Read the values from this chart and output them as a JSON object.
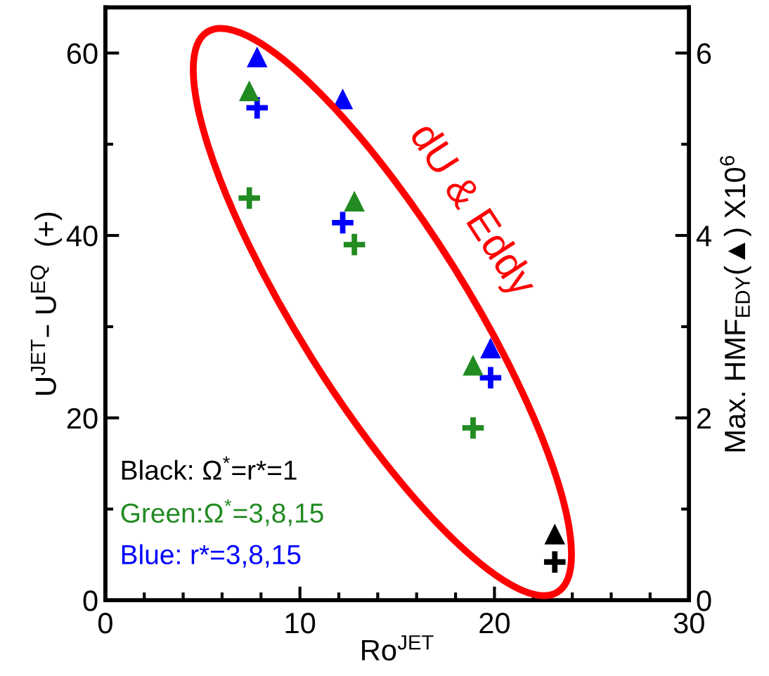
{
  "chart_data": {
    "type": "scatter",
    "xlabel": "Ro$^{JET}$",
    "ylabel": "U$^{JET}$– U$^{EQ}$  (+)",
    "y2label": "Max. HMF$_{EDY}$(▲) X10$^{6}$",
    "xlim": [
      0,
      30
    ],
    "xticks": [
      0,
      10,
      20,
      30
    ],
    "ylim": [
      0,
      65
    ],
    "yticks": [
      0,
      20,
      40,
      60
    ],
    "y2lim": [
      0,
      6.5
    ],
    "y2ticks": [
      0,
      2,
      4,
      6
    ],
    "series": [
      {
        "color": "#000000",
        "marker": "cross",
        "x": [
          23.1
        ],
        "values": [
          4.2
        ]
      },
      {
        "color": "#000000",
        "marker": "triangle",
        "axis": "y2",
        "x": [
          23.1
        ],
        "values": [
          0.72
        ]
      },
      {
        "color": "#228b22",
        "marker": "cross",
        "x": [
          7.4,
          12.8,
          18.9
        ],
        "values": [
          44.1,
          39.0,
          18.9
        ]
      },
      {
        "color": "#228b22",
        "marker": "triangle",
        "axis": "y2",
        "x": [
          7.4,
          12.8,
          18.9
        ],
        "values": [
          5.58,
          4.37,
          2.57
        ]
      },
      {
        "color": "#0000ff",
        "marker": "cross",
        "x": [
          7.8,
          12.2,
          19.8
        ],
        "values": [
          54.0,
          41.4,
          24.4
        ]
      },
      {
        "color": "#0000ff",
        "marker": "triangle",
        "axis": "y2",
        "x": [
          7.8,
          12.2,
          19.8
        ],
        "values": [
          5.95,
          5.49,
          2.76
        ]
      }
    ],
    "annotations": [
      "Black: Ω$^{*}$=r*=1",
      "Green:Ω$^{*}$=3,8,15",
      "Blue: r*=3,8,15",
      "dU & Eddy"
    ],
    "grid": false,
    "legend": false
  }
}
